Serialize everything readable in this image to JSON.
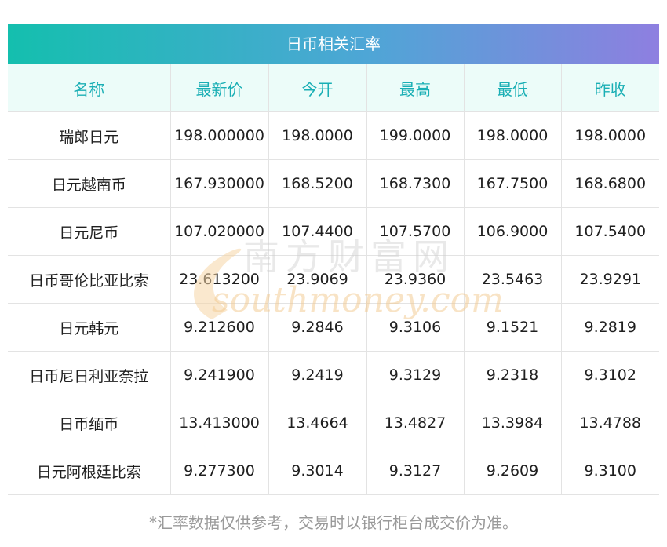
{
  "title": "日币相关汇率",
  "columns": [
    "名称",
    "最新价",
    "今开",
    "最高",
    "最低",
    "昨收"
  ],
  "rows": [
    [
      "瑞郎日元",
      "198.000000",
      "198.0000",
      "199.0000",
      "198.0000",
      "198.0000"
    ],
    [
      "日元越南币",
      "167.930000",
      "168.5200",
      "168.7300",
      "167.7500",
      "168.6800"
    ],
    [
      "日元尼币",
      "107.020000",
      "107.4400",
      "107.5700",
      "106.9000",
      "107.5400"
    ],
    [
      "日币哥伦比亚比索",
      "23.613200",
      "23.9069",
      "23.9360",
      "23.5463",
      "23.9291"
    ],
    [
      "日元韩元",
      "9.212600",
      "9.2846",
      "9.3106",
      "9.1521",
      "9.2819"
    ],
    [
      "日币尼日利亚奈拉",
      "9.241900",
      "9.2419",
      "9.3129",
      "9.2318",
      "9.3102"
    ],
    [
      "日币缅币",
      "13.413000",
      "13.4664",
      "13.4827",
      "13.3984",
      "13.4788"
    ],
    [
      "日元阿根廷比索",
      "9.277300",
      "9.3014",
      "9.3127",
      "9.2609",
      "9.3100"
    ]
  ],
  "watermark": {
    "cn": "南方财富网",
    "en": "southmoney.com"
  },
  "footnote": "*汇率数据仅供参考，交易时以银行柜台成交价为准。"
}
